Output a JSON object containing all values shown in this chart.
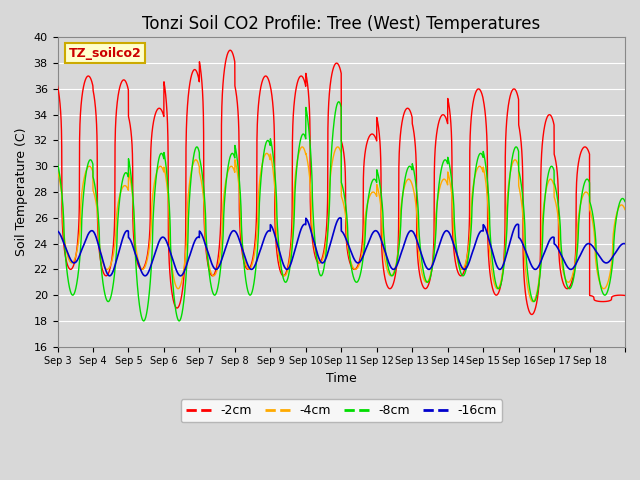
{
  "title": "Tonzi Soil CO2 Profile: Tree (West) Temperatures",
  "xlabel": "Time",
  "ylabel": "Soil Temperature (C)",
  "ylim": [
    16,
    40
  ],
  "yticks": [
    16,
    18,
    20,
    22,
    24,
    26,
    28,
    30,
    32,
    34,
    36,
    38,
    40
  ],
  "background_color": "#d8d8d8",
  "plot_bg_color": "#d8d8d8",
  "grid_color": "#ffffff",
  "legend_label": "TZ_soilco2",
  "legend_bg": "#ffffcc",
  "legend_border": "#ccaa00",
  "series": [
    {
      "label": "-2cm",
      "color": "#ff0000"
    },
    {
      "label": "-4cm",
      "color": "#ffaa00"
    },
    {
      "label": "-8cm",
      "color": "#00dd00"
    },
    {
      "label": "-16cm",
      "color": "#0000cc"
    }
  ],
  "date_labels": [
    "Sep 3",
    "Sep 4",
    "Sep 5",
    "Sep 6",
    "Sep 7",
    "Sep 8",
    "Sep 9",
    "Sep 10",
    "Sep 11",
    "Sep 12",
    "Sep 13",
    "Sep 14",
    "Sep 15",
    "Sep 16",
    "Sep 17",
    "Sep 18"
  ],
  "n_days": 16,
  "ppd": 288,
  "base_temp": 22.0,
  "title_fontsize": 12,
  "axis_label_fontsize": 9,
  "tick_fontsize": 8
}
